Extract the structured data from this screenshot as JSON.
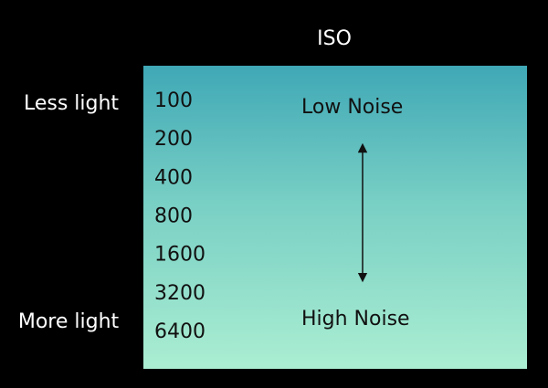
{
  "title": "ISO",
  "left_labels": {
    "top": "Less light",
    "bottom": "More light"
  },
  "iso_values": [
    100,
    200,
    400,
    800,
    1600,
    3200,
    6400
  ],
  "noise_labels": {
    "top": "Low Noise",
    "bottom": "High Noise"
  }
}
